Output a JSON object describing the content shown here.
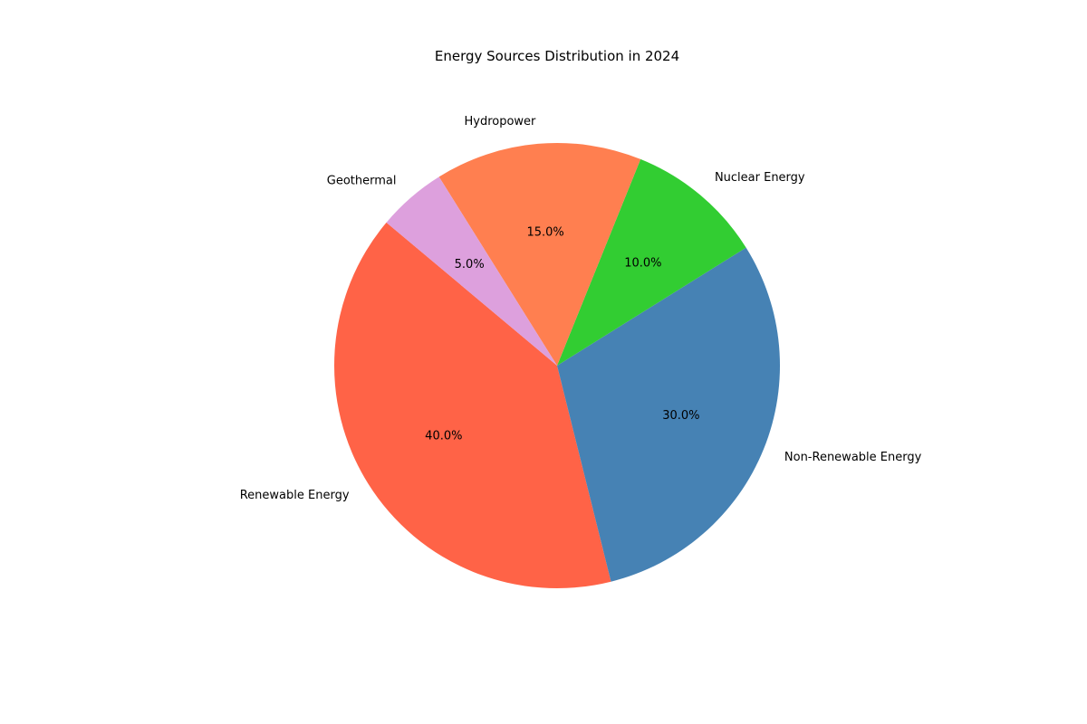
{
  "chart_data": {
    "type": "pie",
    "title": "Energy Sources Distribution in 2024",
    "start_angle_deg": 140,
    "direction": "counterclockwise",
    "slices": [
      {
        "label": "Renewable Energy",
        "value": 40.0,
        "pct_label": "40.0%",
        "color": "#FF6347"
      },
      {
        "label": "Non-Renewable Energy",
        "value": 30.0,
        "pct_label": "30.0%",
        "color": "#4682B4"
      },
      {
        "label": "Nuclear Energy",
        "value": 10.0,
        "pct_label": "10.0%",
        "color": "#32CD32"
      },
      {
        "label": "Hydropower",
        "value": 15.0,
        "pct_label": "15.0%",
        "color": "#FF7F50"
      },
      {
        "label": "Geothermal",
        "value": 5.0,
        "pct_label": "5.0%",
        "color": "#DDA0DD"
      }
    ]
  }
}
